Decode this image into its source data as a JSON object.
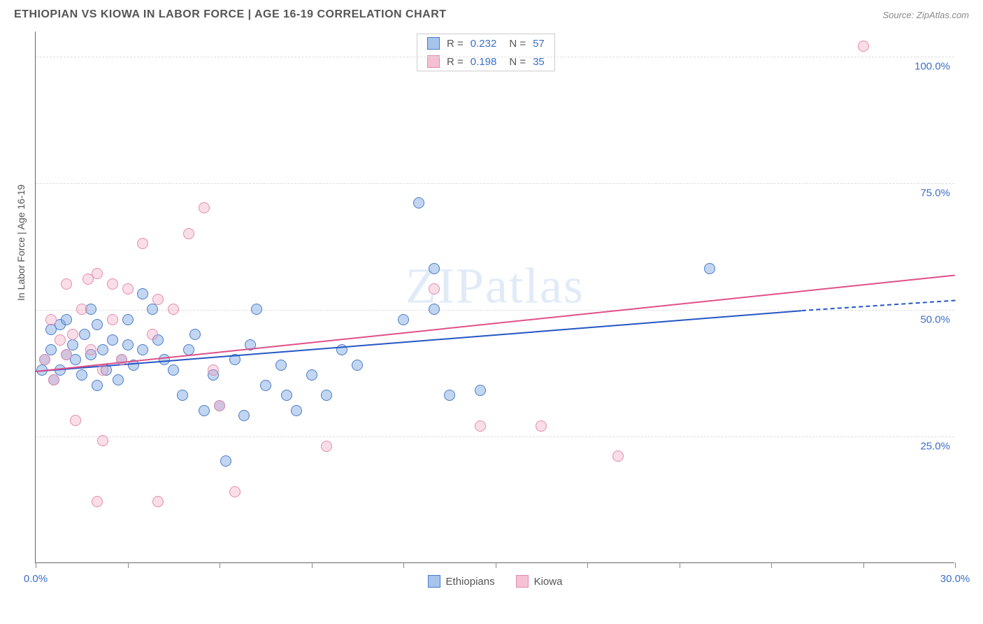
{
  "title": "ETHIOPIAN VS KIOWA IN LABOR FORCE | AGE 16-19 CORRELATION CHART",
  "source": "Source: ZipAtlas.com",
  "watermark": "ZIPatlas",
  "chart": {
    "type": "scatter",
    "y_axis_title": "In Labor Force | Age 16-19",
    "xlim": [
      0,
      30
    ],
    "ylim": [
      0,
      105
    ],
    "x_ticks": [
      0,
      3,
      6,
      9,
      12,
      15,
      18,
      21,
      24,
      27,
      30
    ],
    "x_labels": [
      {
        "v": 0,
        "t": "0.0%"
      },
      {
        "v": 30,
        "t": "30.0%"
      }
    ],
    "y_gridlines": [
      25,
      50,
      75,
      100
    ],
    "y_labels": [
      {
        "v": 25,
        "t": "25.0%"
      },
      {
        "v": 50,
        "t": "50.0%"
      },
      {
        "v": 75,
        "t": "75.0%"
      },
      {
        "v": 100,
        "t": "100.0%"
      }
    ],
    "background_color": "#ffffff",
    "grid_color": "#dddddd",
    "series": [
      {
        "name": "Ethiopians",
        "color_fill": "rgba(120,165,225,0.45)",
        "color_stroke": "#4a7bc8",
        "swatch_fill": "#a6c4ec",
        "R": "0.232",
        "N": "57",
        "trend": {
          "color": "#2456c4",
          "x1": 0,
          "y1": 38,
          "x2": 25,
          "y2": 50,
          "dash_x2": 30,
          "dash_y2": 52
        },
        "points": [
          [
            0.2,
            38
          ],
          [
            0.3,
            40
          ],
          [
            0.5,
            42
          ],
          [
            0.5,
            46
          ],
          [
            0.6,
            36
          ],
          [
            0.8,
            47
          ],
          [
            0.8,
            38
          ],
          [
            1.0,
            48
          ],
          [
            1.0,
            41
          ],
          [
            1.2,
            43
          ],
          [
            1.3,
            40
          ],
          [
            1.5,
            37
          ],
          [
            1.6,
            45
          ],
          [
            1.8,
            41
          ],
          [
            1.8,
            50
          ],
          [
            2.0,
            47
          ],
          [
            2.0,
            35
          ],
          [
            2.2,
            42
          ],
          [
            2.3,
            38
          ],
          [
            2.5,
            44
          ],
          [
            2.7,
            36
          ],
          [
            2.8,
            40
          ],
          [
            3.0,
            43
          ],
          [
            3.0,
            48
          ],
          [
            3.2,
            39
          ],
          [
            3.5,
            42
          ],
          [
            3.8,
            50
          ],
          [
            4.0,
            44
          ],
          [
            4.2,
            40
          ],
          [
            4.5,
            38
          ],
          [
            4.8,
            33
          ],
          [
            5.0,
            42
          ],
          [
            5.2,
            45
          ],
          [
            5.5,
            30
          ],
          [
            5.8,
            37
          ],
          [
            6.0,
            31
          ],
          [
            6.5,
            40
          ],
          [
            6.8,
            29
          ],
          [
            7.0,
            43
          ],
          [
            7.2,
            50
          ],
          [
            7.5,
            35
          ],
          [
            8.0,
            39
          ],
          [
            8.2,
            33
          ],
          [
            8.5,
            30
          ],
          [
            9.0,
            37
          ],
          [
            9.5,
            33
          ],
          [
            10.0,
            42
          ],
          [
            10.5,
            39
          ],
          [
            12.5,
            71
          ],
          [
            13.0,
            50
          ],
          [
            13.0,
            58
          ],
          [
            13.5,
            33
          ],
          [
            12.0,
            48
          ],
          [
            14.5,
            34
          ],
          [
            22.0,
            58
          ],
          [
            6.2,
            20
          ],
          [
            3.5,
            53
          ]
        ]
      },
      {
        "name": "Kiowa",
        "color_fill": "rgba(240,160,185,0.35)",
        "color_stroke": "#e38bb0",
        "swatch_fill": "#f5c0d3",
        "R": "0.198",
        "N": "35",
        "trend": {
          "color": "#e04f8a",
          "x1": 0,
          "y1": 38,
          "x2": 30,
          "y2": 57
        },
        "points": [
          [
            0.3,
            40
          ],
          [
            0.5,
            48
          ],
          [
            0.6,
            36
          ],
          [
            0.8,
            44
          ],
          [
            1.0,
            41
          ],
          [
            1.0,
            55
          ],
          [
            1.2,
            45
          ],
          [
            1.3,
            28
          ],
          [
            1.5,
            50
          ],
          [
            1.7,
            56
          ],
          [
            1.8,
            42
          ],
          [
            2.0,
            57
          ],
          [
            2.2,
            38
          ],
          [
            2.5,
            48
          ],
          [
            2.5,
            55
          ],
          [
            2.8,
            40
          ],
          [
            3.0,
            54
          ],
          [
            3.5,
            63
          ],
          [
            3.8,
            45
          ],
          [
            4.0,
            52
          ],
          [
            4.5,
            50
          ],
          [
            5.0,
            65
          ],
          [
            5.5,
            70
          ],
          [
            5.8,
            38
          ],
          [
            6.0,
            31
          ],
          [
            6.5,
            14
          ],
          [
            4.0,
            12
          ],
          [
            2.0,
            12
          ],
          [
            2.2,
            24
          ],
          [
            9.5,
            23
          ],
          [
            13.0,
            54
          ],
          [
            14.5,
            27
          ],
          [
            16.5,
            27
          ],
          [
            19.0,
            21
          ],
          [
            27.0,
            102
          ]
        ]
      }
    ]
  },
  "colors": {
    "text": "#555555",
    "axis_value": "#3b6fc9"
  }
}
